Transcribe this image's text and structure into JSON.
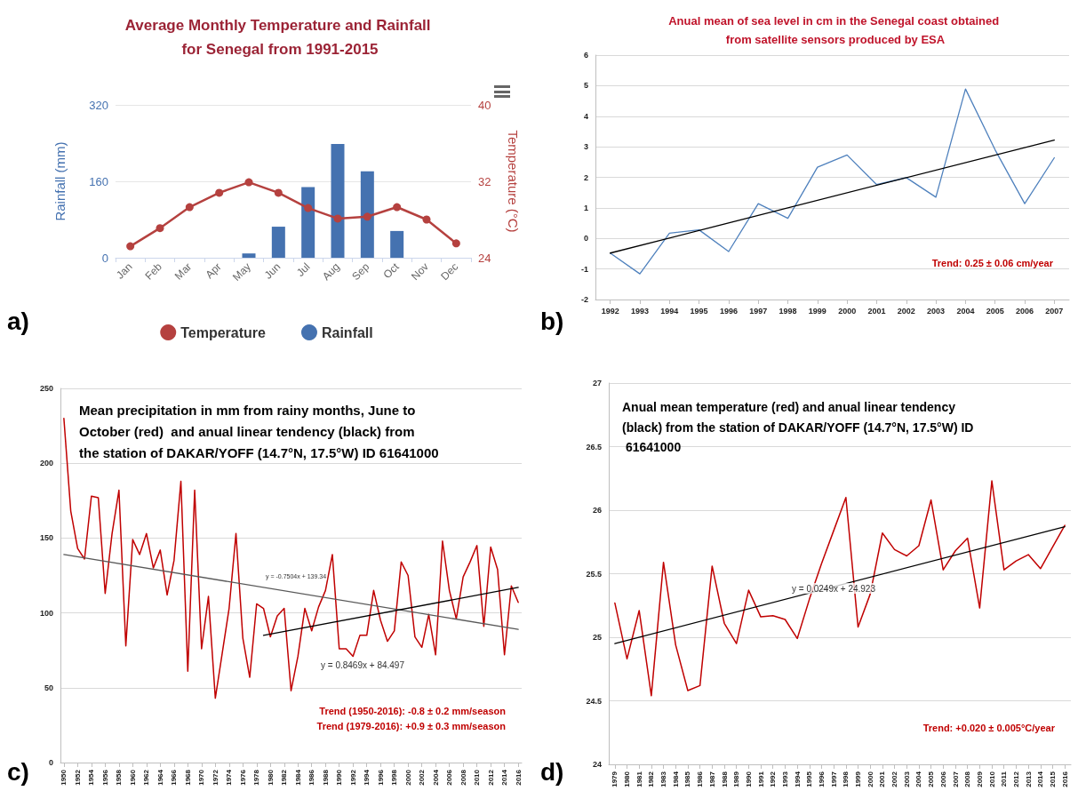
{
  "chart_data": [
    {
      "type": "bar",
      "title": "Average Monthly Temperature and Rainfall for Senegal from 1991-2015",
      "ylabel": "Rainfall (mm)",
      "y2label": "Temperature (°C)",
      "categories": [
        "Jan",
        "Feb",
        "Mar",
        "Apr",
        "May",
        "Jun",
        "Jul",
        "Aug",
        "Sep",
        "Oct",
        "Nov",
        "Dec"
      ],
      "series": [
        {
          "name": "Temperature",
          "type": "line",
          "axis": "y2",
          "color": "#b5413f",
          "values": [
            25.2,
            27.1,
            29.3,
            30.8,
            31.9,
            30.8,
            29.2,
            28.1,
            28.3,
            29.3,
            28.0,
            25.5
          ]
        },
        {
          "name": "Rainfall",
          "type": "bar",
          "color": "#4572b0",
          "values": [
            0,
            0,
            0,
            0,
            9,
            65,
            148,
            238,
            181,
            56,
            0,
            0
          ]
        }
      ],
      "ylim": [
        0,
        320
      ],
      "yticks": [
        0,
        160,
        320
      ],
      "y2lim": [
        24,
        40
      ],
      "y2ticks": [
        24,
        32,
        40
      ],
      "grid": "y",
      "legend": "bottom",
      "marker": "circle",
      "annotations": [
        "a)"
      ]
    },
    {
      "type": "line",
      "title": "Anual mean of sea level in cm in the Senegal coast obtained from satellite sensors produced by ESA",
      "x": [
        1992,
        1993,
        1994,
        1995,
        1996,
        1997,
        1998,
        1999,
        2000,
        2001,
        2002,
        2003,
        2004,
        2005,
        2006,
        2007
      ],
      "series": [
        {
          "color": "#4f81bd",
          "values": [
            -0.48,
            -1.16,
            0.17,
            0.28,
            -0.43,
            1.14,
            0.66,
            2.33,
            2.73,
            1.76,
            1.99,
            1.35,
            4.89,
            2.9,
            1.14,
            2.64
          ]
        },
        {
          "color": "#000000",
          "x": [
            1992,
            2007
          ],
          "values": [
            -0.48,
            3.22
          ]
        }
      ],
      "xlim": [
        1991.5,
        2007.5
      ],
      "xticks": [
        1992,
        1993,
        1994,
        1995,
        1996,
        1997,
        1998,
        1999,
        2000,
        2001,
        2002,
        2003,
        2004,
        2005,
        2006,
        2007
      ],
      "ylim": [
        -2,
        6
      ],
      "yticks": [
        -2,
        -1,
        0,
        1,
        2,
        3,
        4,
        5,
        6
      ],
      "grid": "y",
      "marker": "none",
      "annotations": [
        "b)",
        "Trend: 0.25 ± 0.06 cm/year"
      ]
    },
    {
      "type": "line",
      "title": "Mean precipitation in mm from rainy months, June to October (red)  and anual linear tendency (black) from the station of DAKAR/YOFF (14.7°N, 17.5°W) ID 61641000",
      "x": [
        1950,
        1951,
        1952,
        1953,
        1954,
        1955,
        1956,
        1957,
        1958,
        1959,
        1960,
        1961,
        1962,
        1963,
        1964,
        1965,
        1966,
        1967,
        1968,
        1969,
        1970,
        1971,
        1972,
        1973,
        1974,
        1975,
        1976,
        1977,
        1978,
        1979,
        1980,
        1981,
        1982,
        1983,
        1984,
        1985,
        1986,
        1987,
        1988,
        1989,
        1990,
        1991,
        1992,
        1993,
        1994,
        1995,
        1996,
        1997,
        1998,
        1999,
        2000,
        2001,
        2002,
        2003,
        2004,
        2005,
        2006,
        2007,
        2008,
        2009,
        2010,
        2011,
        2012,
        2013,
        2014,
        2015,
        2016
      ],
      "series": [
        {
          "color": "#c00000",
          "values": [
            230,
            168,
            143,
            136,
            178,
            177,
            113,
            153,
            182,
            78,
            149,
            139,
            153,
            130,
            142,
            112,
            135,
            188,
            61,
            182,
            76,
            111,
            43,
            73,
            103,
            153,
            83,
            57,
            106,
            103,
            84,
            98,
            103,
            48,
            71,
            103,
            88,
            104,
            115,
            139,
            76,
            76,
            71,
            85,
            85,
            115,
            95,
            81,
            88,
            134,
            125,
            84,
            77,
            99,
            72,
            148,
            115,
            96,
            124,
            134,
            145,
            91,
            144,
            129,
            72,
            118,
            107
          ]
        },
        {
          "color": "#595959",
          "x": [
            1950,
            2016
          ],
          "values": [
            139,
            89
          ]
        },
        {
          "color": "#000000",
          "x": [
            1979,
            2016
          ],
          "values": [
            85,
            117
          ]
        }
      ],
      "xlim": [
        1949.5,
        2016.5
      ],
      "xticks": [
        1950,
        1952,
        1954,
        1956,
        1958,
        1960,
        1962,
        1964,
        1966,
        1968,
        1970,
        1972,
        1974,
        1976,
        1978,
        1980,
        1982,
        1984,
        1986,
        1988,
        1990,
        1992,
        1994,
        1996,
        1998,
        2000,
        2002,
        2004,
        2006,
        2008,
        2010,
        2012,
        2014,
        2016
      ],
      "ylim": [
        0,
        250
      ],
      "yticks": [
        0,
        50,
        100,
        150,
        200,
        250
      ],
      "grid": "y",
      "marker": "none",
      "annotations": [
        "c)",
        "Trend (1950-2016): -0.8 ± 0.2 mm/season",
        "Trend (1979-2016): +0.9 ± 0.3 mm/season",
        "y = -0.7504x + 139.34",
        "y = 0.8469x + 84.497"
      ]
    },
    {
      "type": "line",
      "title": "Anual mean temperature (red) and anual linear tendency (black) from the station of DAKAR/YOFF (14.7°N, 17.5°W) ID 61641000",
      "x": [
        1979,
        1980,
        1981,
        1982,
        1983,
        1984,
        1985,
        1986,
        1987,
        1988,
        1989,
        1990,
        1991,
        1992,
        1993,
        1994,
        1995,
        1996,
        1997,
        1998,
        1999,
        2000,
        2001,
        2002,
        2003,
        2004,
        2005,
        2006,
        2007,
        2008,
        2009,
        2010,
        2011,
        2012,
        2013,
        2014,
        2015,
        2016
      ],
      "series": [
        {
          "color": "#c00000",
          "values": [
            25.27,
            24.83,
            25.21,
            24.54,
            25.59,
            24.94,
            24.58,
            24.62,
            25.56,
            25.11,
            24.95,
            25.37,
            25.16,
            25.17,
            25.14,
            24.99,
            25.3,
            25.58,
            25.84,
            26.1,
            25.08,
            25.34,
            25.82,
            25.69,
            25.64,
            25.72,
            26.08,
            25.53,
            25.68,
            25.78,
            25.23,
            26.23,
            25.53,
            25.6,
            25.65,
            25.54,
            25.71,
            25.88
          ]
        },
        {
          "color": "#000000",
          "x": [
            1979,
            2016
          ],
          "values": [
            24.95,
            25.87
          ]
        }
      ],
      "xlim": [
        1978.5,
        2016.5
      ],
      "xticks": [
        1979,
        1980,
        1981,
        1982,
        1983,
        1984,
        1985,
        1986,
        1987,
        1988,
        1989,
        1990,
        1991,
        1992,
        1993,
        1994,
        1995,
        1996,
        1997,
        1998,
        1999,
        2000,
        2001,
        2002,
        2003,
        2004,
        2005,
        2006,
        2007,
        2008,
        2009,
        2010,
        2011,
        2012,
        2013,
        2014,
        2015,
        2016
      ],
      "ylim": [
        24,
        27
      ],
      "yticks": [
        24,
        24.5,
        25,
        25.5,
        26,
        26.5,
        27
      ],
      "grid": "y",
      "marker": "none",
      "annotations": [
        "d)",
        "Trend: +0.020 ± 0.005°C/year",
        "y = 0.0249x + 24.923"
      ]
    }
  ]
}
